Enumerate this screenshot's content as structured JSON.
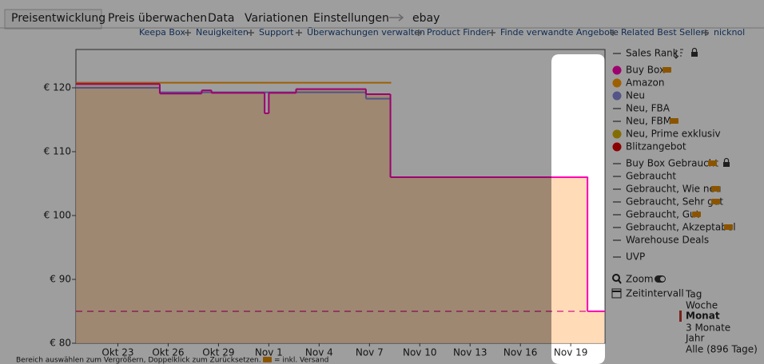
{
  "tabs": [
    "Preisentwicklung",
    "Preis überwachen",
    "Data",
    "Variationen",
    "Einstellungen",
    "ebay"
  ],
  "links": [
    "Keepa Box",
    "Neuigkeiten",
    "Support",
    "Überwachungen verwalten",
    "Product Finder",
    "Finde verwandte Angebote",
    "Related Best Sellers",
    "nicknol"
  ],
  "chart_data": {
    "type": "step",
    "xlim": [
      "Okt 20 12:00",
      "Nov 21 01:00"
    ],
    "xticks": [
      {
        "value": "Okt 23 00:00",
        "label": "Okt 23"
      },
      {
        "value": "Okt 26 00:00",
        "label": "Okt 26"
      },
      {
        "value": "Okt 29 00:00",
        "label": "Okt 29"
      },
      {
        "value": "Nov 1 00:00",
        "label": "Nov 1"
      },
      {
        "value": "Nov 4 00:00",
        "label": "Nov 4"
      },
      {
        "value": "Nov 7 00:00",
        "label": "Nov 7"
      },
      {
        "value": "Nov 10 00:00",
        "label": "Nov 10"
      },
      {
        "value": "Nov 13 00:00",
        "label": "Nov 13"
      },
      {
        "value": "Nov 16 00:00",
        "label": "Nov 16"
      },
      {
        "value": "Nov 19 00:00",
        "label": "Nov 19"
      }
    ],
    "ylim": [
      80,
      126
    ],
    "yticks": [
      {
        "value": 80,
        "label": "€ 80"
      },
      {
        "value": 90,
        "label": "€ 90"
      },
      {
        "value": 100,
        "label": "€ 100"
      },
      {
        "value": 110,
        "label": "€ 110"
      },
      {
        "value": 120,
        "label": "€ 120"
      }
    ],
    "area_color": "#ffd7b0",
    "dashed_line": {
      "value": 85,
      "color": "#e0368c"
    },
    "series": [
      {
        "name": "Buy Box",
        "color": "#ff00b4",
        "x": [
          "Okt 20 12:00",
          "Okt 25 12:00",
          "Okt 28 00:00",
          "Okt 28 14:00",
          "Okt 31 18:00",
          "Nov 1 00:00",
          "Nov 2 15:00",
          "Nov 6 19:00",
          "Nov 8 06:00",
          "Nov 20 00:00",
          "Nov 21 00:00"
        ],
        "values": [
          120.6,
          119.1,
          119.6,
          119.2,
          116,
          119.2,
          119.8,
          119,
          106,
          85,
          85
        ]
      },
      {
        "name": "Amazon",
        "color": "#ff9900",
        "x": [
          "Okt 20 12:00",
          "Nov 8 06:00"
        ],
        "values": [
          120.8,
          120.8
        ]
      },
      {
        "name": "Neu",
        "color": "#8888dd",
        "x": [
          "Okt 20 12:00",
          "Okt 25 12:00",
          "Nov 6 19:00",
          "Nov 8 06:00",
          "Nov 20 00:00"
        ],
        "values": [
          120,
          119.3,
          118.3,
          106,
          106
        ]
      }
    ]
  },
  "legend_extra": [
    {
      "name": "Sales Rank",
      "color": null
    },
    {
      "name": "Neu, FBA",
      "color": null
    },
    {
      "name": "Neu, FBM",
      "color": null
    },
    {
      "name": "Neu, Prime exklusiv",
      "color": "#d4b000"
    },
    {
      "name": "Blitzangebot",
      "color": "#e00000"
    },
    {
      "name": "Buy Box Gebraucht",
      "color": null
    },
    {
      "name": "Gebraucht",
      "color": null
    },
    {
      "name": "Gebraucht, Wie neu",
      "color": null
    },
    {
      "name": "Gebraucht, Sehr gut",
      "color": null
    },
    {
      "name": "Gebraucht, Gut",
      "color": null
    },
    {
      "name": "Gebraucht, Akzeptabel",
      "color": null
    },
    {
      "name": "Warehouse Deals",
      "color": null
    },
    {
      "name": "UVP",
      "color": null
    }
  ],
  "controls": {
    "zoom": "Zoom",
    "interval": "Zeitintervall",
    "options": [
      "Tag",
      "Woche",
      "Monat",
      "3 Monate",
      "Jahr",
      "Alle (896 Tage)"
    ],
    "selected": 2
  },
  "footer": [
    "Bereich auswählen zum Vergrößern, Doppelklick zum Zurücksetzen.",
    "= inkl. Versand"
  ]
}
